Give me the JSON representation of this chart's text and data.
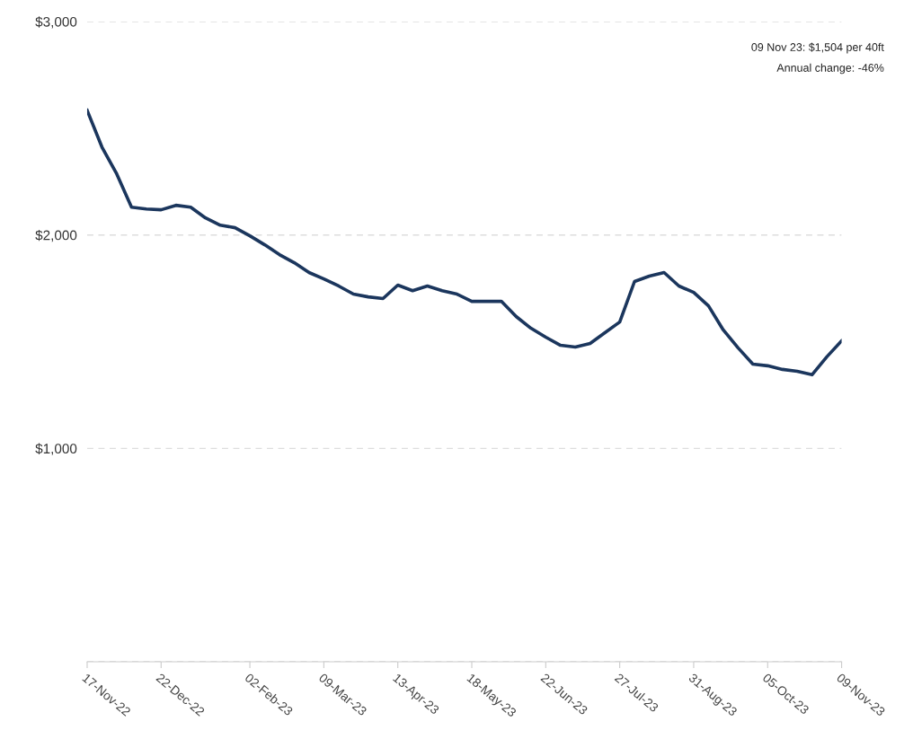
{
  "chart_data": {
    "type": "line",
    "x": [
      "2022-11-17",
      "2022-11-24",
      "2022-12-01",
      "2022-12-08",
      "2022-12-15",
      "2022-12-22",
      "2022-12-29",
      "2023-01-05",
      "2023-01-12",
      "2023-01-19",
      "2023-01-26",
      "2023-02-02",
      "2023-02-09",
      "2023-02-16",
      "2023-02-23",
      "2023-03-02",
      "2023-03-09",
      "2023-03-16",
      "2023-03-23",
      "2023-03-30",
      "2023-04-06",
      "2023-04-13",
      "2023-04-20",
      "2023-04-27",
      "2023-05-04",
      "2023-05-11",
      "2023-05-18",
      "2023-05-25",
      "2023-06-01",
      "2023-06-08",
      "2023-06-15",
      "2023-06-22",
      "2023-06-29",
      "2023-07-06",
      "2023-07-13",
      "2023-07-20",
      "2023-07-27",
      "2023-08-03",
      "2023-08-10",
      "2023-08-17",
      "2023-08-24",
      "2023-08-31",
      "2023-09-07",
      "2023-09-14",
      "2023-09-21",
      "2023-09-28",
      "2023-10-05",
      "2023-10-12",
      "2023-10-19",
      "2023-10-26",
      "2023-11-02",
      "2023-11-09"
    ],
    "series": [
      {
        "color": "#1b365d",
        "values": [
          2584,
          2412,
          2286,
          2130,
          2122,
          2118,
          2139,
          2130,
          2080,
          2046,
          2034,
          1996,
          1954,
          1908,
          1870,
          1824,
          1794,
          1761,
          1723,
          1710,
          1702,
          1765,
          1739,
          1761,
          1739,
          1723,
          1689,
          1689,
          1689,
          1618,
          1563,
          1521,
          1483,
          1475,
          1492,
          1542,
          1592,
          1782,
          1807,
          1824,
          1761,
          1731,
          1668,
          1555,
          1471,
          1395,
          1387,
          1370,
          1361,
          1345,
          1429,
          1504
        ]
      }
    ],
    "xlim": [
      "2022-11-17",
      "2023-11-09"
    ],
    "xticks": [
      {
        "value": "2022-11-17",
        "label": "17-Nov-22"
      },
      {
        "value": "2022-12-22",
        "label": "22-Dec-22"
      },
      {
        "value": "2023-02-02",
        "label": "02-Feb-23"
      },
      {
        "value": "2023-03-09",
        "label": "09-Mar-23"
      },
      {
        "value": "2023-04-13",
        "label": "13-Apr-23"
      },
      {
        "value": "2023-05-18",
        "label": "18-May-23"
      },
      {
        "value": "2023-06-22",
        "label": "22-Jun-23"
      },
      {
        "value": "2023-07-27",
        "label": "27-Jul-23"
      },
      {
        "value": "2023-08-31",
        "label": "31-Aug-23"
      },
      {
        "value": "2023-10-05",
        "label": "05-Oct-23"
      },
      {
        "value": "2023-11-09",
        "label": "09-Nov-23"
      }
    ],
    "ylim": [
      0,
      3000
    ],
    "yticks": [
      {
        "value": 0,
        "label": null
      },
      {
        "value": 1000,
        "label": "$1,000"
      },
      {
        "value": 2000,
        "label": "$2,000"
      },
      {
        "value": 3000,
        "label": "$3,000"
      }
    ],
    "grid": "y",
    "legend": false,
    "marker": "none",
    "line_style": "solid",
    "annotations": [
      "09 Nov 23: $1,504 per 40ft",
      "Annual change: -46%"
    ]
  }
}
